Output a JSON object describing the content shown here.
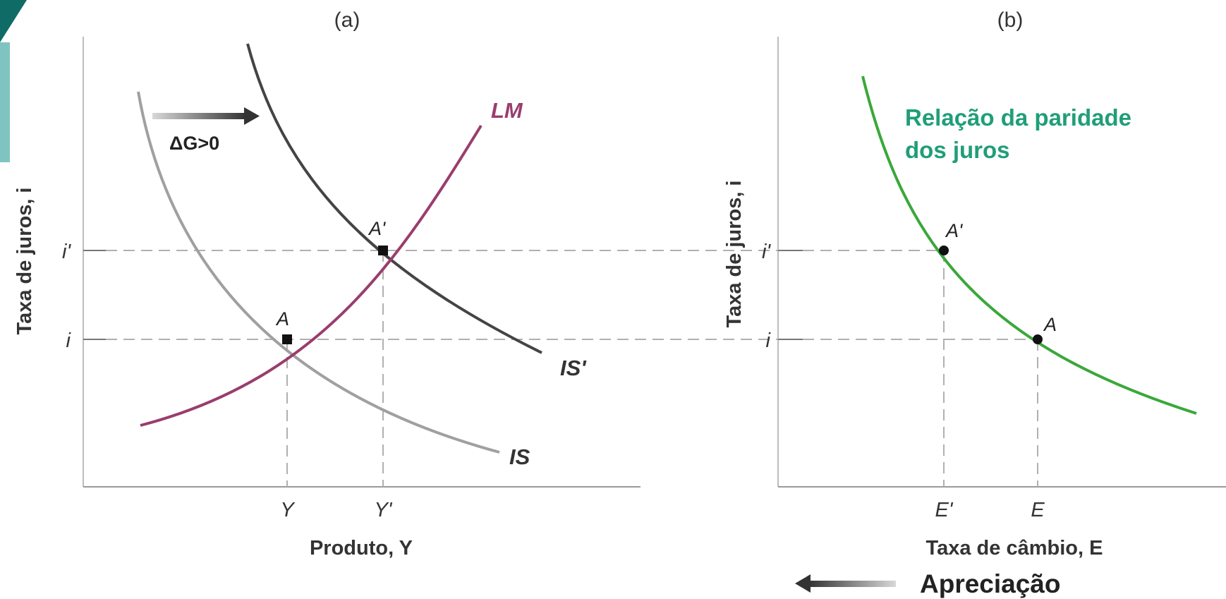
{
  "panel_a": {
    "title": "(a)",
    "y_axis_label": "Taxa de juros, i",
    "x_axis_label": "Produto, Y",
    "y_ticks": {
      "i_prime": "i'",
      "i": "i"
    },
    "x_ticks": {
      "Y": "Y",
      "Y_prime": "Y'"
    },
    "curves": {
      "IS": "IS",
      "IS_prime": "IS'",
      "LM": "LM"
    },
    "points": {
      "A": "A",
      "A_prime": "A'"
    },
    "shift_label": "ΔG>0"
  },
  "panel_b": {
    "title": "(b)",
    "y_axis_label": "Taxa de juros, i",
    "x_axis_label": "Taxa de câmbio, E",
    "y_ticks": {
      "i_prime": "i'",
      "i": "i"
    },
    "x_ticks": {
      "E_prime": "E'",
      "E": "E"
    },
    "curve_label_line1": "Relação da paridade",
    "curve_label_line2": "dos juros",
    "points": {
      "A_prime": "A'",
      "A": "A"
    },
    "arrow_label": "Apreciação"
  },
  "colors": {
    "IS": "#a0a0a0",
    "IS_prime": "#444444",
    "LM": "#9a3d6e",
    "parity_curve": "#3aa83a",
    "parity_label": "#1f9e78",
    "corner_accent": "#0f6b66"
  }
}
